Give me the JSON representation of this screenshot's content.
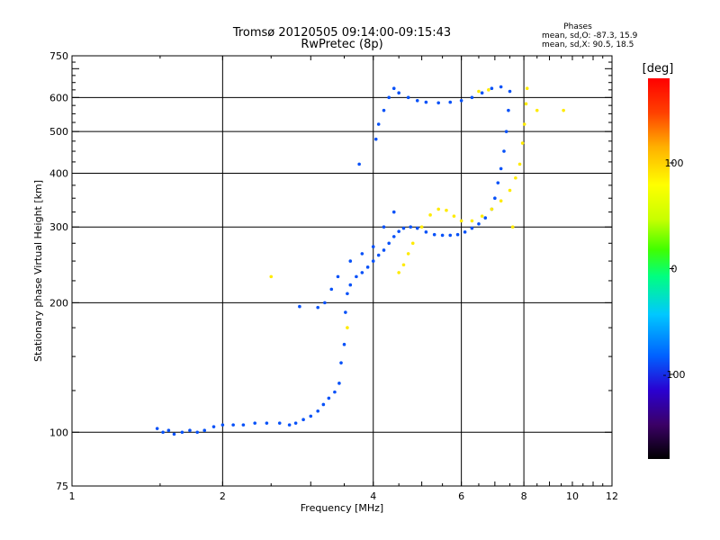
{
  "chart_data": {
    "type": "scatter",
    "title": "Tromsø 20120505 09:14:00-09:15:43",
    "subtitle": "RwPretec (8p)",
    "xlabel": "Frequency [MHz]",
    "ylabel": "Stationary phase Virtual Height [km]",
    "x_scale": "log",
    "y_scale": "log",
    "xlim": [
      1,
      12
    ],
    "ylim": [
      75,
      750
    ],
    "x_ticks": [
      1,
      2,
      4,
      6,
      8,
      10,
      12
    ],
    "x_tick_labels": [
      "1",
      "2",
      "4",
      "6",
      "8",
      "10",
      "12"
    ],
    "x_grid": [
      2,
      4,
      6,
      8
    ],
    "y_ticks": [
      75,
      100,
      200,
      300,
      400,
      500,
      600,
      750
    ],
    "y_tick_labels": [
      "75",
      "100",
      "200",
      "300",
      "400",
      "500",
      "600",
      "750"
    ],
    "y_grid": [
      100,
      200,
      300,
      400,
      500,
      600
    ],
    "grid": true,
    "phases_note": {
      "title": "Phases",
      "line1": "mean, sd,O: -87.3, 15.9",
      "line2": "mean, sd,X:  90.5, 18.5"
    },
    "colorbar": {
      "label": "[deg]",
      "min": -180,
      "max": 180,
      "ticks": [
        100,
        0,
        -100
      ],
      "tick_labels": [
        "100",
        "0",
        "-100"
      ],
      "colors": [
        "#000000",
        "#3b0066",
        "#2a00d0",
        "#0060ff",
        "#00c8ff",
        "#00ff80",
        "#40ff00",
        "#c8ff00",
        "#ffff00",
        "#ffb000",
        "#ff4000",
        "#ff0000"
      ]
    },
    "series": [
      {
        "mode": "O",
        "phase": -87,
        "points": [
          [
            1.48,
            102
          ],
          [
            1.52,
            100
          ],
          [
            1.56,
            101
          ],
          [
            1.6,
            99
          ],
          [
            1.66,
            100
          ],
          [
            1.72,
            101
          ],
          [
            1.78,
            100
          ],
          [
            1.84,
            101
          ],
          [
            1.92,
            103
          ],
          [
            2.0,
            104
          ],
          [
            2.1,
            104
          ],
          [
            2.2,
            104
          ],
          [
            2.32,
            105
          ],
          [
            2.45,
            105
          ],
          [
            2.6,
            105
          ],
          [
            2.72,
            104
          ],
          [
            2.8,
            105
          ],
          [
            2.9,
            107
          ],
          [
            3.0,
            109
          ],
          [
            3.1,
            112
          ],
          [
            3.18,
            116
          ],
          [
            3.26,
            120
          ],
          [
            3.35,
            124
          ],
          [
            3.42,
            130
          ],
          [
            3.45,
            145
          ],
          [
            3.5,
            160
          ],
          [
            3.52,
            190
          ],
          [
            3.55,
            210
          ],
          [
            3.6,
            220
          ],
          [
            3.7,
            230
          ],
          [
            3.8,
            235
          ],
          [
            3.9,
            242
          ],
          [
            4.0,
            250
          ],
          [
            4.1,
            258
          ],
          [
            4.2,
            265
          ],
          [
            4.3,
            275
          ],
          [
            4.4,
            285
          ],
          [
            4.5,
            293
          ],
          [
            4.6,
            298
          ],
          [
            4.75,
            300
          ],
          [
            4.9,
            298
          ],
          [
            5.1,
            292
          ],
          [
            5.3,
            288
          ],
          [
            5.5,
            287
          ],
          [
            5.7,
            287
          ],
          [
            5.9,
            288
          ],
          [
            6.1,
            292
          ],
          [
            6.3,
            298
          ],
          [
            6.5,
            305
          ],
          [
            6.7,
            315
          ],
          [
            6.9,
            330
          ],
          [
            7.0,
            350
          ],
          [
            7.1,
            380
          ],
          [
            7.2,
            410
          ],
          [
            7.3,
            450
          ],
          [
            7.38,
            500
          ],
          [
            7.45,
            560
          ],
          [
            7.5,
            620
          ],
          [
            4.05,
            480
          ],
          [
            4.1,
            520
          ],
          [
            4.2,
            560
          ],
          [
            4.3,
            600
          ],
          [
            4.4,
            630
          ],
          [
            4.5,
            615
          ],
          [
            4.7,
            600
          ],
          [
            4.9,
            590
          ],
          [
            5.1,
            585
          ],
          [
            5.4,
            583
          ],
          [
            5.7,
            585
          ],
          [
            6.0,
            590
          ],
          [
            6.3,
            600
          ],
          [
            6.6,
            615
          ],
          [
            6.9,
            630
          ],
          [
            7.2,
            635
          ],
          [
            3.75,
            420
          ],
          [
            3.3,
            215
          ],
          [
            3.4,
            230
          ],
          [
            3.6,
            250
          ],
          [
            3.8,
            260
          ],
          [
            4.0,
            270
          ],
          [
            4.2,
            300
          ],
          [
            4.4,
            325
          ],
          [
            3.1,
            195
          ],
          [
            3.2,
            200
          ],
          [
            2.85,
            196
          ]
        ]
      },
      {
        "mode": "X",
        "phase": 90,
        "points": [
          [
            4.5,
            235
          ],
          [
            4.6,
            245
          ],
          [
            4.7,
            260
          ],
          [
            4.8,
            275
          ],
          [
            5.0,
            300
          ],
          [
            5.2,
            320
          ],
          [
            5.4,
            330
          ],
          [
            5.6,
            328
          ],
          [
            5.8,
            318
          ],
          [
            6.0,
            310
          ],
          [
            6.3,
            310
          ],
          [
            6.6,
            318
          ],
          [
            6.9,
            330
          ],
          [
            7.2,
            345
          ],
          [
            7.5,
            365
          ],
          [
            7.7,
            390
          ],
          [
            7.85,
            420
          ],
          [
            7.95,
            470
          ],
          [
            8.02,
            520
          ],
          [
            8.08,
            580
          ],
          [
            8.12,
            630
          ],
          [
            6.8,
            625
          ],
          [
            6.5,
            620
          ],
          [
            7.6,
            300
          ],
          [
            8.5,
            560
          ],
          [
            9.6,
            560
          ],
          [
            2.5,
            230
          ],
          [
            3.55,
            175
          ]
        ]
      }
    ]
  }
}
